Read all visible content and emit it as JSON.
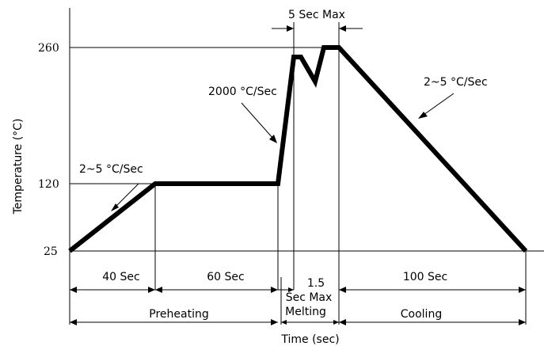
{
  "chart_data": {
    "type": "line",
    "xlabel": "Time (sec)",
    "ylabel": "Temperature (°C)",
    "y_ticks": [
      "260",
      "120",
      "25"
    ],
    "rate_labels": {
      "preheat_ramp": "2~5 °C/Sec",
      "fast_ramp": "2000 °C/Sec",
      "cooling_ramp": "2~5 °C/Sec"
    },
    "peak_window_label": "5 Sec Max",
    "durations": {
      "ramp": "40 Sec",
      "soak": "60 Sec",
      "peak_line1": "1.5",
      "peak_line2": "Sec Max",
      "cool": "100 Sec"
    },
    "phases": {
      "preheating": "Preheating",
      "melting": "Melting",
      "cooling": "Cooling"
    }
  }
}
